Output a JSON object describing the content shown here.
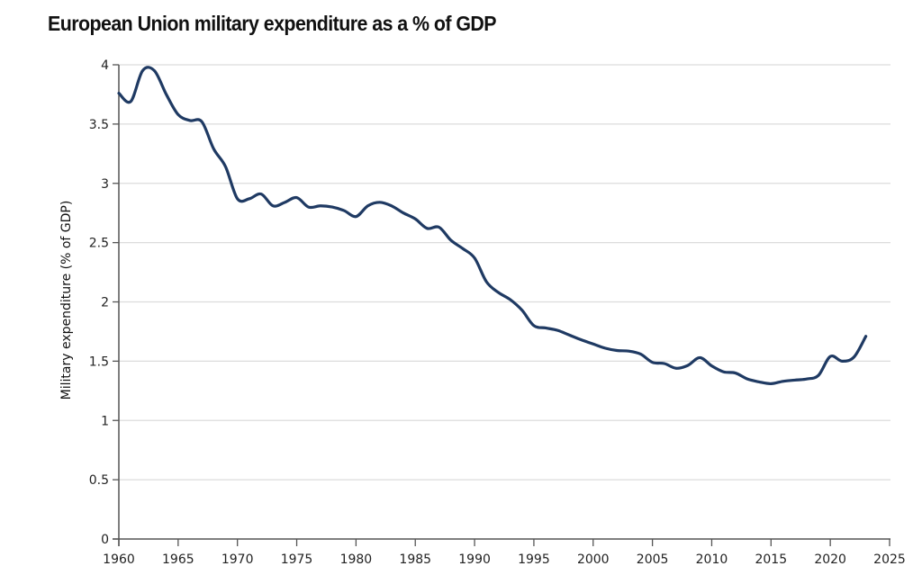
{
  "chart_data": {
    "type": "line",
    "title": "European Union military expenditure as a % of GDP",
    "xlabel": "",
    "ylabel": "Military expenditure (% of GDP)",
    "xlim": [
      1960,
      2025
    ],
    "ylim": [
      0,
      4
    ],
    "x_ticks": [
      1960,
      1965,
      1970,
      1975,
      1980,
      1985,
      1990,
      1995,
      2000,
      2005,
      2010,
      2015,
      2020,
      2025
    ],
    "x_tick_labels": [
      "1960",
      "1965",
      "1970",
      "1975",
      "1980",
      "1985",
      "1990",
      "1995",
      "2000",
      "2005",
      "2010",
      "2015",
      "2020",
      "2025"
    ],
    "y_ticks": [
      0,
      0.5,
      1,
      1.5,
      2,
      2.5,
      3,
      3.5,
      4
    ],
    "y_tick_labels": [
      "0",
      "0.5",
      "1",
      "1.5",
      "2",
      "2.5",
      "3",
      "3.5",
      "4"
    ],
    "grid": "horizontal",
    "legend": "none",
    "series": [
      {
        "name": "European Union",
        "color": "#1f3a63",
        "x": [
          1960,
          1961,
          1962,
          1963,
          1964,
          1965,
          1966,
          1967,
          1968,
          1969,
          1970,
          1971,
          1972,
          1973,
          1974,
          1975,
          1976,
          1977,
          1978,
          1979,
          1980,
          1981,
          1982,
          1983,
          1984,
          1985,
          1986,
          1987,
          1988,
          1989,
          1990,
          1991,
          1992,
          1993,
          1994,
          1995,
          1996,
          1997,
          1998,
          1999,
          2000,
          2001,
          2002,
          2003,
          2004,
          2005,
          2006,
          2007,
          2008,
          2009,
          2010,
          2011,
          2012,
          2013,
          2014,
          2015,
          2016,
          2017,
          2018,
          2019,
          2020,
          2021,
          2022,
          2023
        ],
        "values": [
          3.76,
          3.69,
          3.95,
          3.95,
          3.75,
          3.58,
          3.53,
          3.52,
          3.29,
          3.14,
          2.87,
          2.87,
          2.91,
          2.81,
          2.84,
          2.88,
          2.8,
          2.81,
          2.8,
          2.77,
          2.72,
          2.81,
          2.84,
          2.81,
          2.75,
          2.7,
          2.62,
          2.63,
          2.52,
          2.45,
          2.37,
          2.17,
          2.08,
          2.02,
          1.93,
          1.8,
          1.78,
          1.76,
          1.72,
          1.68,
          1.645,
          1.61,
          1.59,
          1.585,
          1.56,
          1.49,
          1.48,
          1.44,
          1.465,
          1.53,
          1.46,
          1.41,
          1.4,
          1.35,
          1.325,
          1.31,
          1.33,
          1.34,
          1.35,
          1.38,
          1.54,
          1.5,
          1.535,
          1.71
        ]
      }
    ]
  }
}
